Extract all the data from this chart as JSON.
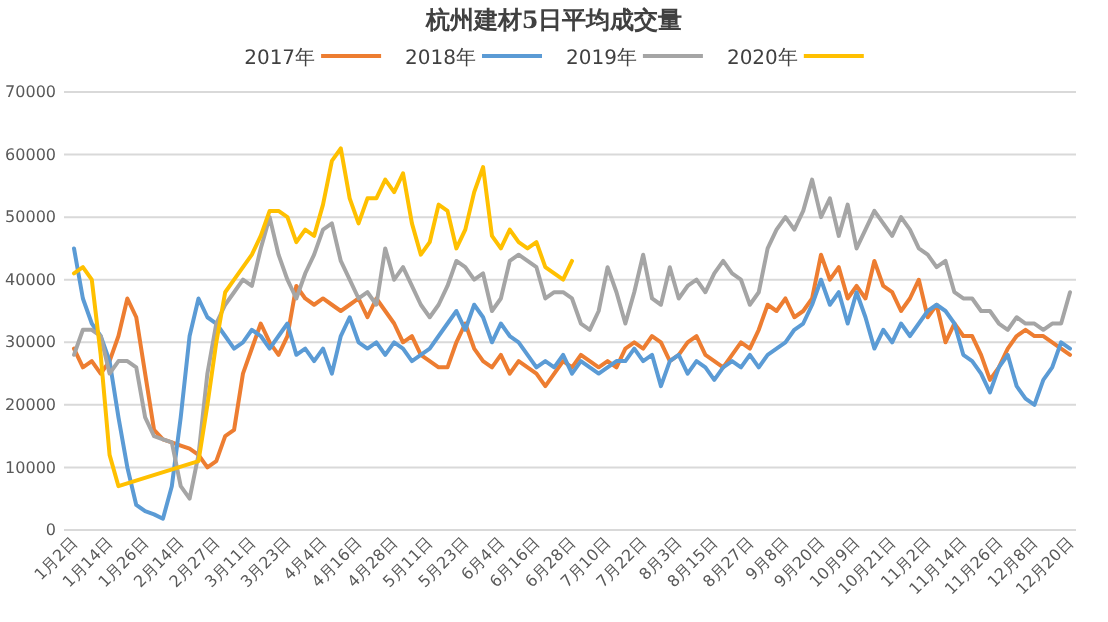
{
  "chart_data": {
    "type": "line",
    "title": "杭州建材5日平均成交量",
    "categories": [
      "1月2日",
      null,
      null,
      null,
      "1月14日",
      null,
      null,
      null,
      "1月26日",
      null,
      null,
      null,
      "2月14日",
      null,
      null,
      null,
      "2月27日",
      null,
      null,
      null,
      "3月11日",
      null,
      null,
      null,
      "3月23日",
      null,
      null,
      null,
      "4月4日",
      null,
      null,
      null,
      "4月16日",
      null,
      null,
      null,
      "4月28日",
      null,
      null,
      null,
      "5月11日",
      null,
      null,
      null,
      "5月23日",
      null,
      null,
      null,
      "6月4日",
      null,
      null,
      null,
      "6月16日",
      null,
      null,
      null,
      "6月28日",
      null,
      null,
      null,
      "7月10日",
      null,
      null,
      null,
      "7月22日",
      null,
      null,
      null,
      "8月3日",
      null,
      null,
      null,
      "8月15日",
      null,
      null,
      null,
      "8月27日",
      null,
      null,
      null,
      "9月8日",
      null,
      null,
      null,
      "9月20日",
      null,
      null,
      null,
      "10月9日",
      null,
      null,
      null,
      "10月21日",
      null,
      null,
      null,
      "11月2日",
      null,
      null,
      null,
      "11月14日",
      null,
      null,
      null,
      "11月26日",
      null,
      null,
      null,
      "12月8日",
      null,
      null,
      null,
      "12月20日"
    ],
    "ylim": [
      0,
      70000
    ],
    "yticks": [
      0,
      10000,
      20000,
      30000,
      40000,
      50000,
      60000,
      70000
    ],
    "grid": "y",
    "legend": "top",
    "line_style": "solid",
    "marker": "none",
    "series": [
      {
        "name": "2017年",
        "color": "#ed7d31",
        "values": [
          29000,
          26000,
          27000,
          25000,
          27000,
          31000,
          37000,
          34000,
          25000,
          16000,
          14500,
          14000,
          13500,
          13000,
          12000,
          10000,
          11000,
          15000,
          16000,
          25000,
          29000,
          33000,
          30000,
          28000,
          31000,
          39000,
          37000,
          36000,
          37000,
          36000,
          35000,
          36000,
          37000,
          34000,
          37000,
          35000,
          33000,
          30000,
          31000,
          28000,
          27000,
          26000,
          26000,
          30000,
          33000,
          29000,
          27000,
          26000,
          28000,
          25000,
          27000,
          26000,
          25000,
          23000,
          25000,
          27000,
          26000,
          28000,
          27000,
          26000,
          27000,
          26000,
          29000,
          30000,
          29000,
          31000,
          30000,
          27000,
          28000,
          30000,
          31000,
          28000,
          27000,
          26000,
          28000,
          30000,
          29000,
          32000,
          36000,
          35000,
          37000,
          34000,
          35000,
          37000,
          44000,
          40000,
          42000,
          37000,
          39000,
          37000,
          43000,
          39000,
          38000,
          35000,
          37000,
          40000,
          34000,
          36000,
          30000,
          33000,
          31000,
          31000,
          28000,
          24000,
          26000,
          29000,
          31000,
          32000,
          31000,
          31000,
          30000,
          29000,
          28000
        ]
      },
      {
        "name": "2018年",
        "color": "#5b9bd5",
        "values": [
          45000,
          37000,
          33000,
          31000,
          27000,
          18000,
          10000,
          4000,
          3000,
          2500,
          1800,
          7000,
          18000,
          31000,
          37000,
          34000,
          33000,
          31000,
          29000,
          30000,
          32000,
          31000,
          29000,
          31000,
          33000,
          28000,
          29000,
          27000,
          29000,
          25000,
          31000,
          34000,
          30000,
          29000,
          30000,
          28000,
          30000,
          29000,
          27000,
          28000,
          29000,
          31000,
          33000,
          35000,
          32000,
          36000,
          34000,
          30000,
          33000,
          31000,
          30000,
          28000,
          26000,
          27000,
          26000,
          28000,
          25000,
          27000,
          26000,
          25000,
          26000,
          27000,
          27000,
          29000,
          27000,
          28000,
          23000,
          27000,
          28000,
          25000,
          27000,
          26000,
          24000,
          26000,
          27000,
          26000,
          28000,
          26000,
          28000,
          29000,
          30000,
          32000,
          33000,
          36000,
          40000,
          36000,
          38000,
          33000,
          38000,
          34000,
          29000,
          32000,
          30000,
          33000,
          31000,
          33000,
          35000,
          36000,
          35000,
          33000,
          28000,
          27000,
          25000,
          22000,
          26000,
          28000,
          23000,
          21000,
          20000,
          24000,
          26000,
          30000,
          29000
        ]
      },
      {
        "name": "2019年",
        "color": "#a5a5a5",
        "values": [
          28000,
          32000,
          32000,
          31000,
          25000,
          27000,
          27000,
          26000,
          18000,
          15000,
          14500,
          14000,
          7000,
          5000,
          12000,
          25000,
          33000,
          36000,
          38000,
          40000,
          39000,
          45000,
          50000,
          44000,
          40000,
          37000,
          41000,
          44000,
          48000,
          49000,
          43000,
          40000,
          37000,
          38000,
          36000,
          45000,
          40000,
          42000,
          39000,
          36000,
          34000,
          36000,
          39000,
          43000,
          42000,
          40000,
          41000,
          35000,
          37000,
          43000,
          44000,
          43000,
          42000,
          37000,
          38000,
          38000,
          37000,
          33000,
          32000,
          35000,
          42000,
          38000,
          33000,
          38000,
          44000,
          37000,
          36000,
          42000,
          37000,
          39000,
          40000,
          38000,
          41000,
          43000,
          41000,
          40000,
          36000,
          38000,
          45000,
          48000,
          50000,
          48000,
          51000,
          56000,
          50000,
          53000,
          47000,
          52000,
          45000,
          48000,
          51000,
          49000,
          47000,
          50000,
          48000,
          45000,
          44000,
          42000,
          43000,
          38000,
          37000,
          37000,
          35000,
          35000,
          33000,
          32000,
          34000,
          33000,
          33000,
          32000,
          33000,
          33000,
          38000
        ]
      },
      {
        "name": "2020年",
        "color": "#ffc000",
        "values": [
          41000,
          42000,
          40000,
          28000,
          12000,
          7000,
          null,
          null,
          null,
          null,
          null,
          null,
          null,
          null,
          11000,
          20000,
          30000,
          38000,
          40000,
          42000,
          44000,
          47000,
          51000,
          51000,
          50000,
          46000,
          48000,
          47000,
          52000,
          59000,
          61000,
          53000,
          49000,
          53000,
          53000,
          56000,
          54000,
          57000,
          49000,
          44000,
          46000,
          52000,
          51000,
          45000,
          48000,
          54000,
          58000,
          47000,
          45000,
          48000,
          46000,
          45000,
          46000,
          42000,
          41000,
          40000,
          43000,
          null,
          null,
          null,
          null,
          null,
          null,
          null,
          null,
          null,
          null,
          null,
          null,
          null,
          null,
          null,
          null,
          null,
          null,
          null,
          null,
          null,
          null,
          null,
          null,
          null,
          null,
          null,
          null,
          null,
          null,
          null,
          null,
          null,
          null,
          null,
          null,
          null,
          null,
          null,
          null,
          null,
          null,
          null,
          null,
          null,
          null,
          null,
          null,
          null,
          null,
          null,
          null,
          null,
          null,
          null,
          null
        ]
      }
    ]
  }
}
